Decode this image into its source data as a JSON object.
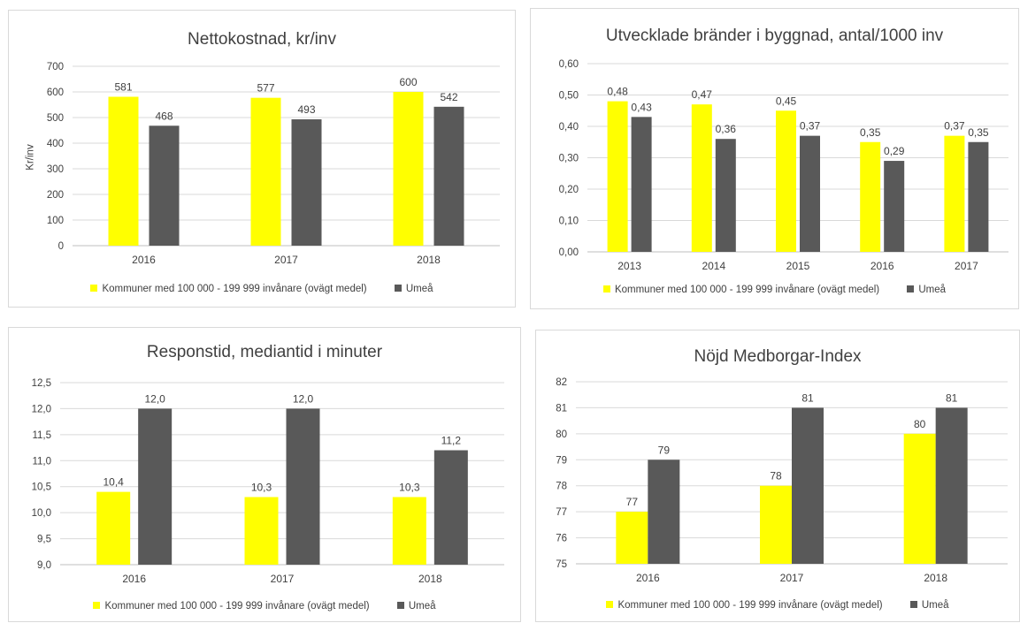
{
  "colors": {
    "kommuner": "#ffff00",
    "umea": "#595959",
    "grid": "#d9d9d9",
    "text": "#404040"
  },
  "legend": {
    "kommuner": "Kommuner med 100 000 - 199 999 invånare (ovägt medel)",
    "umea": "Umeå"
  },
  "chart_data": [
    {
      "type": "bar",
      "title": "Nettokostnad, kr/inv",
      "ylabel": "Kr/inv",
      "categories": [
        "2016",
        "2017",
        "2018"
      ],
      "yticks": [
        "0",
        "100",
        "200",
        "300",
        "400",
        "500",
        "600",
        "700"
      ],
      "ylim": [
        0,
        700
      ],
      "series": [
        {
          "name": "Kommuner med 100 000 - 199 999 invånare (ovägt medel)",
          "values": [
            581,
            577,
            600
          ],
          "labels": [
            "581",
            "577",
            "600"
          ]
        },
        {
          "name": "Umeå",
          "values": [
            468,
            493,
            542
          ],
          "labels": [
            "468",
            "493",
            "542"
          ]
        }
      ]
    },
    {
      "type": "bar",
      "title": "Utvecklade bränder i byggnad, antal/1000 inv",
      "categories": [
        "2013",
        "2014",
        "2015",
        "2016",
        "2017"
      ],
      "yticks": [
        "0,00",
        "0,10",
        "0,20",
        "0,30",
        "0,40",
        "0,50",
        "0,60"
      ],
      "ylim": [
        0,
        0.6
      ],
      "series": [
        {
          "name": "Kommuner med 100 000 - 199 999 invånare (ovägt medel)",
          "values": [
            0.48,
            0.47,
            0.45,
            0.35,
            0.37
          ],
          "labels": [
            "0,48",
            "0,47",
            "0,45",
            "0,35",
            "0,37"
          ]
        },
        {
          "name": "Umeå",
          "values": [
            0.43,
            0.36,
            0.37,
            0.29,
            0.35
          ],
          "labels": [
            "0,43",
            "0,36",
            "0,37",
            "0,29",
            "0,35"
          ]
        }
      ]
    },
    {
      "type": "bar",
      "title": "Responstid, mediantid i minuter",
      "categories": [
        "2016",
        "2017",
        "2018"
      ],
      "yticks": [
        "9,0",
        "9,5",
        "10,0",
        "10,5",
        "11,0",
        "11,5",
        "12,0",
        "12,5"
      ],
      "ylim": [
        9,
        12.5
      ],
      "series": [
        {
          "name": "Kommuner med 100 000 - 199 999 invånare (ovägt medel)",
          "values": [
            10.4,
            10.3,
            10.3
          ],
          "labels": [
            "10,4",
            "10,3",
            "10,3"
          ]
        },
        {
          "name": "Umeå",
          "values": [
            12.0,
            12.0,
            11.2
          ],
          "labels": [
            "12,0",
            "12,0",
            "11,2"
          ]
        }
      ]
    },
    {
      "type": "bar",
      "title": "Nöjd Medborgar-Index",
      "categories": [
        "2016",
        "2017",
        "2018"
      ],
      "yticks": [
        "75",
        "76",
        "77",
        "78",
        "79",
        "80",
        "81",
        "82"
      ],
      "ylim": [
        75,
        82
      ],
      "series": [
        {
          "name": "Kommuner med 100 000 - 199 999 invånare (ovägt medel)",
          "values": [
            77,
            78,
            80
          ],
          "labels": [
            "77",
            "78",
            "80"
          ]
        },
        {
          "name": "Umeå",
          "values": [
            79,
            81,
            81
          ],
          "labels": [
            "79",
            "81",
            "81"
          ]
        }
      ]
    }
  ]
}
